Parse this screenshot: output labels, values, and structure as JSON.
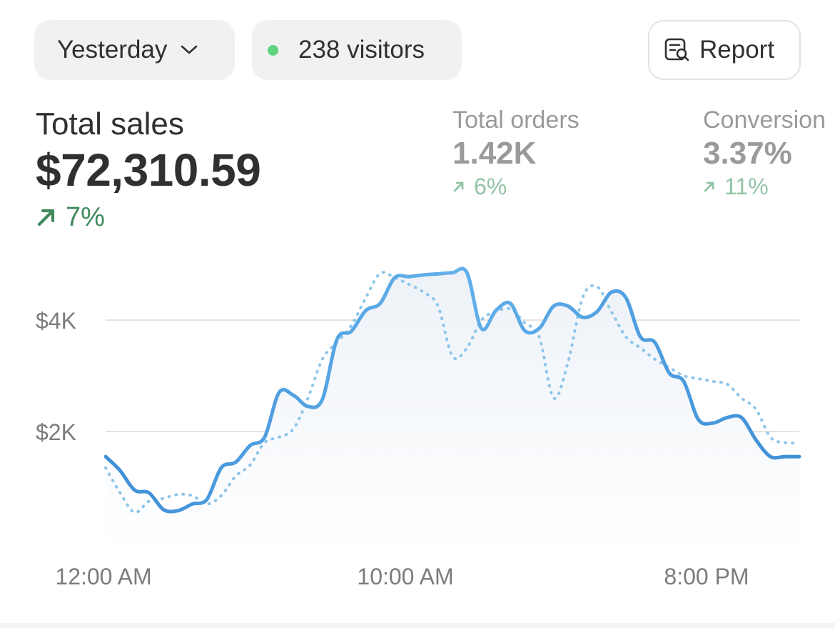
{
  "toolbar": {
    "period_label": "Yesterday",
    "visitors_label": "238 visitors",
    "report_label": "Report"
  },
  "metrics": {
    "total_sales": {
      "label": "Total sales",
      "value": "$72,310.59",
      "change": "7%"
    },
    "total_orders": {
      "label": "Total orders",
      "value": "1.42K",
      "change": "6%"
    },
    "conversion": {
      "label": "Conversion",
      "value": "3.37%",
      "change": "11%"
    }
  },
  "colors": {
    "accent_line": "#4a9fe0",
    "comparison_line": "#8ec5ea",
    "trend_green": "#3f8a5c",
    "visitor_dot": "#5ed47e"
  },
  "icons": {
    "period_dropdown": "chevron-down-icon",
    "visitors": "live-dot-icon",
    "report": "report-search-icon",
    "trend": "arrow-up-right-icon"
  },
  "chart_data": {
    "type": "line",
    "x_ticks": [
      "12:00 AM",
      "10:00 AM",
      "8:00 PM"
    ],
    "y_ticks": [
      {
        "value": 2000,
        "label": "$2K"
      },
      {
        "value": 4000,
        "label": "$4K"
      }
    ],
    "ylim": [
      0,
      5200
    ],
    "grid": true,
    "x": [
      0,
      1,
      2,
      3,
      4,
      5,
      6,
      7,
      8,
      9,
      10,
      11,
      12,
      13,
      14,
      15,
      16,
      17,
      18,
      19,
      20,
      21,
      22,
      23,
      24,
      25,
      26,
      27,
      28,
      29,
      30,
      31,
      32,
      33,
      34,
      35,
      36,
      37,
      38,
      39,
      40,
      41,
      42,
      43,
      44,
      45,
      46,
      47,
      48
    ],
    "series": [
      {
        "style": "solid",
        "values": [
          1550,
          1300,
          950,
          900,
          600,
          580,
          700,
          780,
          1350,
          1450,
          1750,
          1900,
          2700,
          2650,
          2450,
          2580,
          3650,
          3800,
          4170,
          4300,
          4760,
          4780,
          4810,
          4830,
          4850,
          4850,
          3850,
          4170,
          4300,
          3810,
          3850,
          4250,
          4250,
          4050,
          4150,
          4500,
          4400,
          3700,
          3600,
          3050,
          2900,
          2220,
          2150,
          2250,
          2250,
          1850,
          1550,
          1550,
          1550
        ]
      },
      {
        "style": "dotted",
        "values": [
          1350,
          900,
          550,
          750,
          800,
          870,
          850,
          700,
          850,
          1200,
          1400,
          1800,
          1900,
          2050,
          2600,
          3300,
          3600,
          3900,
          4400,
          4840,
          4760,
          4640,
          4500,
          4250,
          3350,
          3500,
          4000,
          4150,
          4200,
          3950,
          3700,
          2600,
          3250,
          4400,
          4600,
          4150,
          3700,
          3500,
          3300,
          3150,
          3000,
          2950,
          2900,
          2850,
          2600,
          2400,
          1900,
          1800,
          1800
        ]
      }
    ]
  }
}
